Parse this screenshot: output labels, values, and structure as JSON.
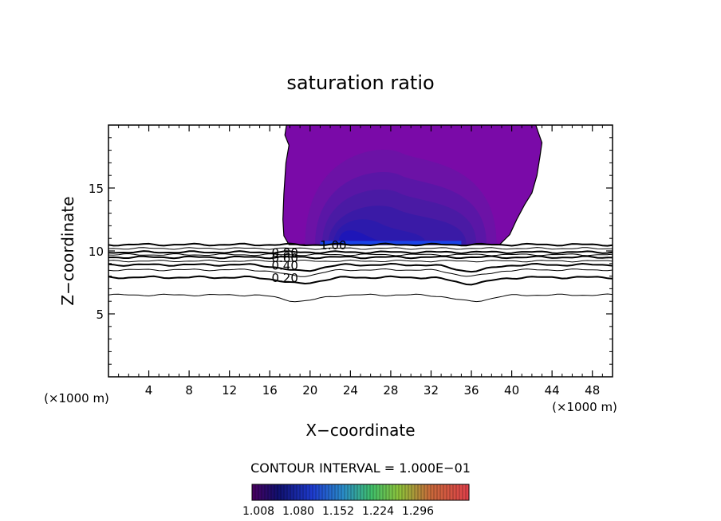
{
  "chart_data": {
    "type": "contour",
    "title": "saturation ratio",
    "xlabel": "X−coordinate",
    "ylabel": "Z−coordinate",
    "x_unit_label": "(×1000 m)",
    "z_unit_label": "(×1000 m)",
    "xlim": [
      0,
      50
    ],
    "ylim": [
      0,
      20
    ],
    "x_ticks": [
      4,
      8,
      12,
      16,
      20,
      24,
      28,
      32,
      36,
      40,
      44,
      48
    ],
    "y_ticks": [
      5,
      10,
      15
    ],
    "contour_lines": [
      {
        "level": 0.2,
        "label": "0.20",
        "z_base": 7.9,
        "label_x": 17.5
      },
      {
        "level": 0.4,
        "label": "0.40",
        "z_base": 8.9,
        "label_x": 17.5
      },
      {
        "level": 0.6,
        "label": "0.60",
        "z_base": 9.5,
        "label_x": 17.5
      },
      {
        "level": 0.8,
        "label": "0.80",
        "z_base": 9.9,
        "label_x": 17.5
      },
      {
        "level": 1.0,
        "label": "1.00",
        "z_base": 10.5,
        "label_x": 22.3
      }
    ],
    "unlabeled_contours_z": [
      6.5,
      8.5,
      9.2,
      9.7,
      10.2
    ],
    "supersaturated_region": {
      "x_range": [
        17.3,
        43.0
      ],
      "z_range": [
        10.5,
        20.0
      ]
    },
    "contour_interval_text": "CONTOUR INTERVAL = 1.000E−01",
    "colorbar": {
      "tick_labels": [
        "1.008",
        "1.080",
        "1.152",
        "1.224",
        "1.296"
      ],
      "colors": [
        "#4a0060",
        "#10106e",
        "#1e3cd0",
        "#2a8cc8",
        "#3fbf6a",
        "#8ec23a",
        "#c86a3a",
        "#e2502e",
        "#e0404a"
      ]
    }
  }
}
